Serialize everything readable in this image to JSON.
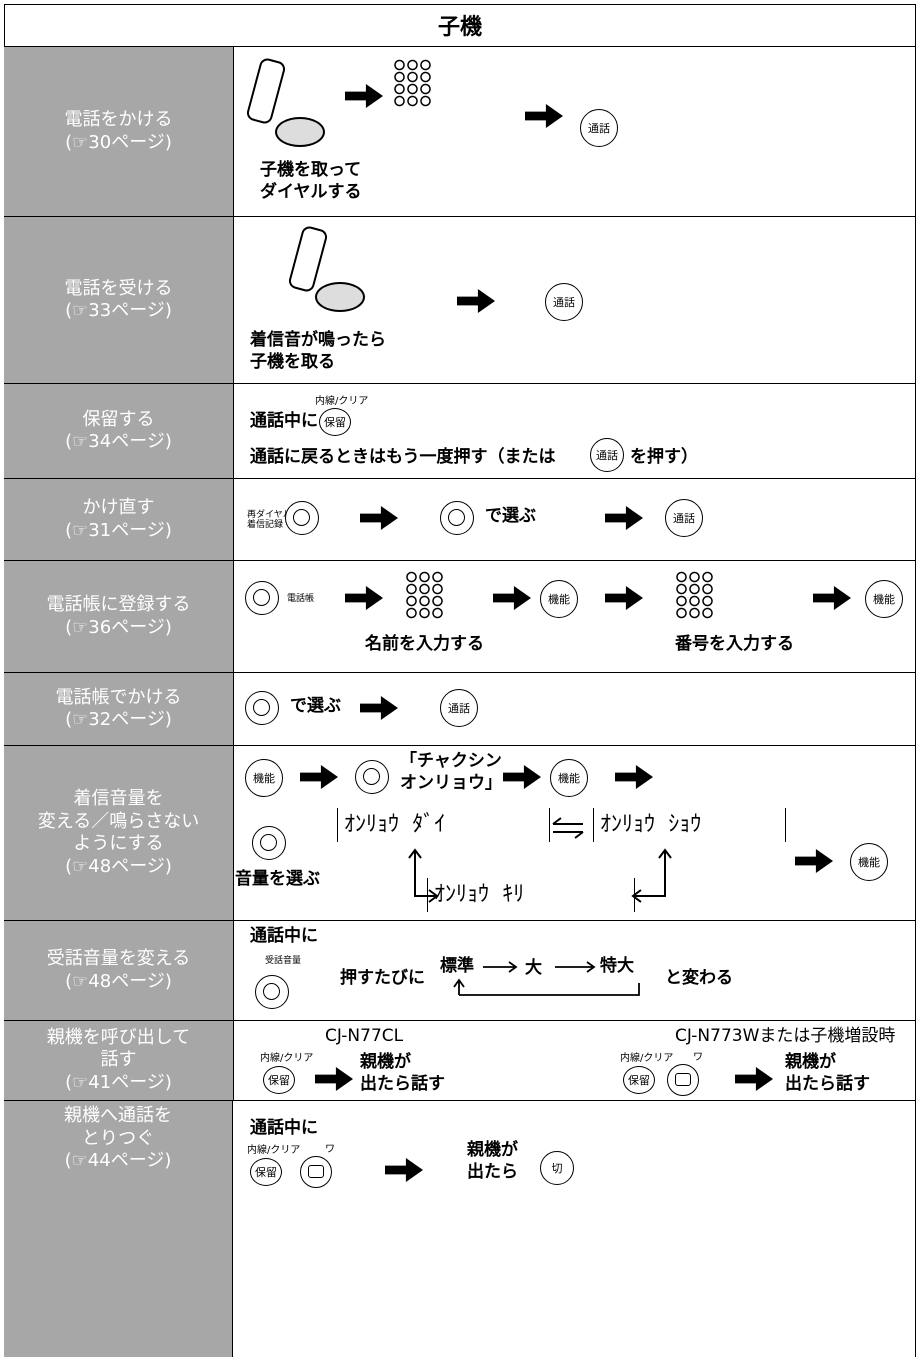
{
  "header": {
    "title": "子機"
  },
  "rows": [
    {
      "label": "電話をかける",
      "ref": "(☞30ページ)",
      "caption": "子機を取って\nダイヤルする",
      "button": "通話"
    },
    {
      "label": "電話を受ける",
      "ref": "(☞33ページ)",
      "caption": "着信音が鳴ったら\n子機を取る",
      "button": "通話"
    },
    {
      "label": "保留する",
      "ref": "(☞34ページ)",
      "line1": "通話中に",
      "key_top": "内線/クリア",
      "key": "保留",
      "line2a": "通話に戻るときはもう一度押す（または",
      "button": "通話",
      "line2b": "を押す）"
    },
    {
      "label": "かけ直す",
      "ref": "(☞31ページ)",
      "key_label": "再ダイヤル/\n着信記録",
      "text": "で選ぶ",
      "button": "通話"
    },
    {
      "label": "電話帳に登録する",
      "ref": "(☞36ページ)",
      "key_label": "電話帳",
      "button1": "機能",
      "caption1": "名前を入力する",
      "button2": "機能",
      "caption2": "番号を入力する"
    },
    {
      "label": "電話帳でかける",
      "ref": "(☞32ページ)",
      "text": "で選ぶ",
      "button": "通話"
    },
    {
      "label": "着信音量を\n変える／鳴らさない\nようにする",
      "ref": "(☞48ページ)",
      "button1": "機能",
      "quote": "「チャクシン\nオンリョウ」",
      "button2": "機能",
      "caption": "音量を選ぶ",
      "displays": [
        "ｵﾝﾘｮｳ ﾀﾞｲ",
        "ｵﾝﾘｮｳ ｼｮｳ",
        "ｵﾝﾘｮｳ ｷﾘ"
      ],
      "button3": "機能"
    },
    {
      "label": "受話音量を変える",
      "ref": "(☞48ページ)",
      "line1": "通話中に",
      "key_label": "受話音量",
      "text1": "押すたびに",
      "levels": [
        "標準",
        "大",
        "特大"
      ],
      "text2": "と変わる"
    },
    {
      "label": "親機を呼び出して\n話す",
      "ref": "(☞41ページ)",
      "model1": "CJ-N77CL",
      "key_top1": "内線/クリア",
      "key1": "保留",
      "text1": "親機が\n出たら話す",
      "model2": "CJ-N773Wまたは子機増設時",
      "key_top2": "内線/クリア",
      "key2": "保留",
      "small2": "ワ",
      "text2": "親機が\n出たら話す"
    },
    {
      "label": "親機へ通話を\nとりつぐ",
      "ref": "(☞44ページ)",
      "line1": "通話中に",
      "key_top": "内線/クリア",
      "key": "保留",
      "small": "ワ",
      "text": "親機が\n出たら",
      "button": "切"
    }
  ]
}
